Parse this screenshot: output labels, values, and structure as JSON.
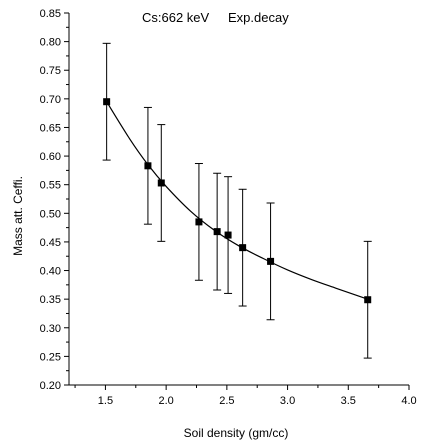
{
  "chart_data": {
    "type": "scatter",
    "title": "Cs:662 keV",
    "subtitle": "Exp.decay",
    "xlabel": "Soil density (gm/cc)",
    "ylabel": "Mass att. Ceffi.",
    "xlim": [
      1.2,
      4.0
    ],
    "ylim": [
      0.2,
      0.85
    ],
    "xticks": [
      "1.5",
      "2.0",
      "2.5",
      "3.0",
      "3.5",
      "4.0"
    ],
    "yticks": [
      "0.20",
      "0.25",
      "0.30",
      "0.35",
      "0.40",
      "0.45",
      "0.50",
      "0.55",
      "0.60",
      "0.65",
      "0.70",
      "0.75",
      "0.80",
      "0.85"
    ],
    "grid": false,
    "series": [
      {
        "x": [
          1.51,
          1.85,
          1.96,
          2.27,
          2.42,
          2.51,
          2.63,
          2.86,
          3.66
        ],
        "y": [
          0.695,
          0.583,
          0.553,
          0.485,
          0.468,
          0.462,
          0.44,
          0.416,
          0.349
        ],
        "yerr": [
          0.102,
          0.102,
          0.102,
          0.102,
          0.102,
          0.102,
          0.102,
          0.102,
          0.102
        ],
        "marker": "square",
        "color": "#000000"
      }
    ],
    "fit": {
      "type": "exponential decay",
      "x": [
        1.51,
        1.7,
        1.85,
        2.0,
        2.2,
        2.4,
        2.6,
        2.8,
        3.0,
        3.2,
        3.4,
        3.66
      ],
      "y": [
        0.695,
        0.63,
        0.585,
        0.547,
        0.504,
        0.47,
        0.443,
        0.421,
        0.401,
        0.384,
        0.369,
        0.35
      ],
      "color": "#000000"
    }
  }
}
